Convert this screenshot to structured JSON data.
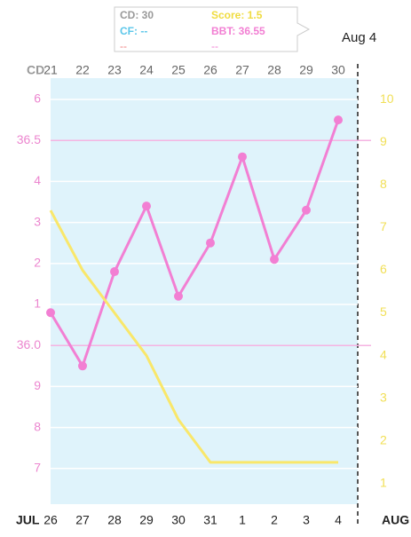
{
  "tooltip": {
    "cd": "CD: 30",
    "score": "Score: 1.5",
    "cf": "CF: --",
    "bbt": "BBT: 36.55",
    "extra1": "--",
    "extra2": "--"
  },
  "selected_date": "Aug 4",
  "chart_data": {
    "type": "line",
    "cd_label": "CD",
    "cycle_days": [
      "21",
      "22",
      "23",
      "24",
      "25",
      "26",
      "27",
      "28",
      "29",
      "30"
    ],
    "categories": [
      "26",
      "27",
      "28",
      "29",
      "30",
      "31",
      "1",
      "2",
      "3",
      "4"
    ],
    "month_start": "JUL",
    "month_end": "AUG",
    "series": [
      {
        "name": "BBT",
        "color": "#f27fd3",
        "values": [
          36.08,
          35.95,
          36.18,
          36.34,
          36.12,
          36.25,
          36.46,
          36.21,
          36.33,
          36.55
        ]
      },
      {
        "name": "Score",
        "color": "#f9e76a",
        "axis": "y2",
        "values": [
          7.4,
          6.0,
          5.0,
          4.0,
          2.5,
          1.5,
          1.5,
          1.5,
          1.5,
          1.5
        ]
      }
    ],
    "ylim": [
      35.613,
      36.652
    ],
    "yticks": [
      {
        "value": 36.6,
        "label": "6"
      },
      36.5,
      {
        "value": 36.4,
        "label": "4"
      },
      {
        "value": 36.3,
        "label": "3"
      },
      {
        "value": 36.2,
        "label": "2"
      },
      {
        "value": 36.1,
        "label": "1"
      },
      {
        "value": 36.0,
        "label": "36.0"
      },
      {
        "value": 35.9,
        "label": "9"
      },
      {
        "value": 35.8,
        "label": "8"
      },
      {
        "value": 35.7,
        "label": "7"
      }
    ],
    "y2lim": [
      0.52,
      10.5
    ],
    "y2ticks": [
      1,
      2,
      3,
      4,
      5,
      6,
      7,
      8,
      9,
      10
    ]
  }
}
